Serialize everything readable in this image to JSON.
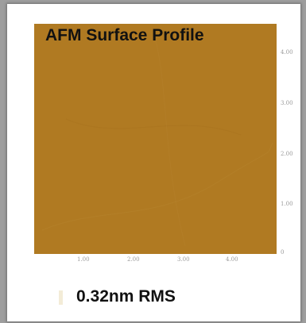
{
  "chart_data": {
    "type": "heatmap",
    "title": "AFM Surface Profile",
    "x_ticks": [
      "1.00",
      "2.00",
      "3.00",
      "4.00"
    ],
    "y_ticks": [
      "4.00",
      "3.00",
      "2.00",
      "1.00",
      "0"
    ],
    "colors": {
      "surface": "#b07a22",
      "background": "#9e9e9e"
    }
  },
  "annotation": {
    "roughness": "0.32nm RMS"
  }
}
